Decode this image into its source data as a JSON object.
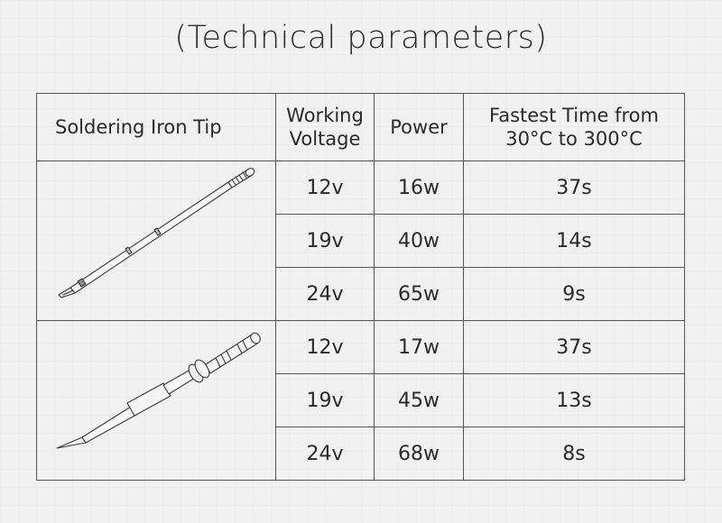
{
  "title": "(Technical parameters)",
  "table": {
    "headers": {
      "tip": "Soldering Iron Tip",
      "voltage_line1": "Working",
      "voltage_line2": "Voltage",
      "power": "Power",
      "time_line1": "Fastest Time from",
      "time_line2": "30°C to 300°C"
    },
    "groups": [
      {
        "tip_icon": "chisel-tip-soldering-iron-icon",
        "rows": [
          {
            "voltage": "12v",
            "power": "16w",
            "time": "37s"
          },
          {
            "voltage": "19v",
            "power": "40w",
            "time": "14s"
          },
          {
            "voltage": "24v",
            "power": "65w",
            "time": "9s"
          }
        ]
      },
      {
        "tip_icon": "conical-tip-soldering-iron-icon",
        "rows": [
          {
            "voltage": "12v",
            "power": "17w",
            "time": "37s"
          },
          {
            "voltage": "19v",
            "power": "45w",
            "time": "13s"
          },
          {
            "voltage": "24v",
            "power": "68w",
            "time": "8s"
          }
        ]
      }
    ]
  },
  "colors": {
    "background": "#f1f1f1",
    "border": "#555555",
    "text": "#2a2a2a"
  }
}
